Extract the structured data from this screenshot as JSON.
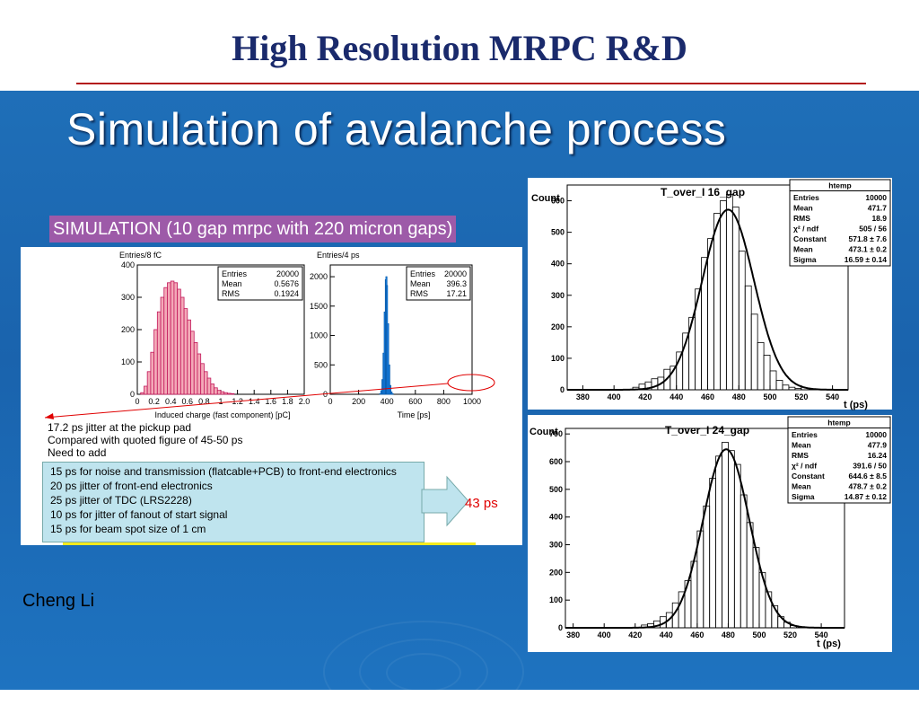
{
  "slide": {
    "title": "High Resolution MRPC R&D",
    "subtitle": "Simulation of avalanche process",
    "author": "Cheng Li"
  },
  "colors": {
    "title": "#1a2a6c",
    "title_rule": "#b31b1b",
    "panel": "#1a67b2",
    "banner": "#9d5aa8",
    "charge_hist": "#f4a9b8",
    "time_hist": "#1e90ff",
    "highlight": "#e00000",
    "add_box": "#bfe4ee"
  },
  "simulation": {
    "banner": "SIMULATION (10 gap mrpc with 220 micron gaps)",
    "notes": [
      "17.2 ps jitter at the pickup pad",
      "Compared with quoted figure of 45-50 ps",
      "Need to add"
    ],
    "additions": [
      "15 ps for noise and transmission (flatcable+PCB) to front-end electronics",
      "20 ps jitter of front-end electronics",
      "25 ps jitter of TDC (LRS2228)",
      "10 ps for jitter of fanout of start signal",
      "15 ps for beam spot size of 1 cm"
    ],
    "result": "43 ps"
  },
  "chart_data": [
    {
      "type": "bar",
      "ylabel": "Entries/8 fC",
      "xlabel": "Induced charge (fast component) [pC]",
      "xlim": [
        0,
        2.0
      ],
      "ylim": [
        0,
        400
      ],
      "xticks": [
        "0",
        "0.2",
        "0.4",
        "0.6",
        "0.8",
        "1",
        "1.2",
        "1.4",
        "1.6",
        "1.8",
        "2.0"
      ],
      "yticks": [
        "0",
        "100",
        "200",
        "300",
        "400"
      ],
      "stats": [
        [
          "Entries",
          "20000"
        ],
        [
          "Mean",
          "0.5676"
        ],
        [
          "RMS",
          "0.1924"
        ]
      ],
      "x": [
        0.06,
        0.1,
        0.14,
        0.18,
        0.22,
        0.26,
        0.3,
        0.34,
        0.38,
        0.42,
        0.46,
        0.5,
        0.54,
        0.58,
        0.62,
        0.66,
        0.7,
        0.74,
        0.78,
        0.82,
        0.86,
        0.9,
        0.94,
        0.98,
        1.02,
        1.06,
        1.1,
        1.14
      ],
      "values": [
        5,
        25,
        70,
        130,
        200,
        255,
        300,
        330,
        345,
        350,
        345,
        325,
        300,
        265,
        230,
        195,
        160,
        125,
        95,
        70,
        50,
        32,
        20,
        12,
        8,
        5,
        3,
        2
      ]
    },
    {
      "type": "bar",
      "ylabel": "Entries/4 ps",
      "xlabel": "Time [ps]",
      "xlim": [
        0,
        1000
      ],
      "ylim": [
        0,
        2200
      ],
      "xticks": [
        "0",
        "200",
        "400",
        "600",
        "800",
        "1000"
      ],
      "yticks": [
        "0",
        "500",
        "1000",
        "1500",
        "2000"
      ],
      "stats": [
        [
          "Entries",
          "20000"
        ],
        [
          "Mean",
          "396.3"
        ],
        [
          "RMS",
          "17.21"
        ]
      ],
      "x": [
        352,
        360,
        368,
        376,
        384,
        392,
        396,
        400,
        408,
        416,
        424,
        432,
        440
      ],
      "values": [
        10,
        60,
        250,
        700,
        1400,
        1950,
        2000,
        1850,
        1200,
        500,
        150,
        40,
        10
      ]
    },
    {
      "type": "bar",
      "title": "T_over_I  16_gap",
      "ylabel": "Count",
      "xlabel": "t  (ps)",
      "xlim": [
        370,
        550
      ],
      "ylim": [
        0,
        650
      ],
      "xticks": [
        "380",
        "400",
        "420",
        "440",
        "460",
        "480",
        "500",
        "520",
        "540"
      ],
      "yticks": [
        "0",
        "100",
        "200",
        "300",
        "400",
        "500",
        "600"
      ],
      "stats_title": "htemp",
      "stats": [
        [
          "Entries",
          "10000"
        ],
        [
          "Mean",
          "471.7"
        ],
        [
          "RMS",
          "18.9"
        ],
        [
          "χ² / ndf",
          "505 / 56"
        ],
        [
          "Constant",
          "571.8 ± 7.6"
        ],
        [
          "Mean",
          "473.1 ± 0.2"
        ],
        [
          "Sigma",
          "16.59 ± 0.14"
        ]
      ],
      "x": [
        414,
        418,
        422,
        426,
        430,
        434,
        438,
        442,
        446,
        450,
        454,
        458,
        462,
        466,
        470,
        474,
        478,
        482,
        486,
        490,
        494,
        498,
        502,
        506,
        510,
        514,
        518
      ],
      "values": [
        8,
        18,
        25,
        35,
        40,
        65,
        75,
        120,
        180,
        230,
        320,
        420,
        480,
        560,
        600,
        620,
        580,
        440,
        330,
        240,
        150,
        110,
        60,
        30,
        15,
        8,
        4
      ],
      "fit": {
        "type": "gaussian",
        "constant": 571.8,
        "mean": 473.1,
        "sigma": 16.59
      }
    },
    {
      "type": "bar",
      "title": "T_over_I  24_gap",
      "ylabel": "Count",
      "xlabel": "t  (ps)",
      "xlim": [
        375,
        555
      ],
      "ylim": [
        0,
        720
      ],
      "xticks": [
        "380",
        "400",
        "420",
        "440",
        "460",
        "480",
        "500",
        "520",
        "540"
      ],
      "yticks": [
        "0",
        "100",
        "200",
        "300",
        "400",
        "500",
        "600",
        "700"
      ],
      "stats_title": "htemp",
      "stats": [
        [
          "Entries",
          "10000"
        ],
        [
          "Mean",
          "477.9"
        ],
        [
          "RMS",
          "16.24"
        ],
        [
          "χ² / ndf",
          "391.6 / 50"
        ],
        [
          "Constant",
          "644.6 ± 8.5"
        ],
        [
          "Mean",
          "478.7 ± 0.2"
        ],
        [
          "Sigma",
          "14.87 ± 0.12"
        ]
      ],
      "x": [
        426,
        430,
        434,
        438,
        442,
        446,
        450,
        454,
        458,
        462,
        466,
        470,
        474,
        478,
        482,
        486,
        490,
        494,
        498,
        502,
        506,
        510,
        514,
        518,
        522
      ],
      "values": [
        10,
        15,
        25,
        40,
        55,
        90,
        130,
        170,
        240,
        350,
        440,
        540,
        620,
        670,
        640,
        590,
        480,
        380,
        290,
        200,
        130,
        80,
        40,
        20,
        8
      ],
      "fit": {
        "type": "gaussian",
        "constant": 644.6,
        "mean": 478.7,
        "sigma": 14.87
      }
    }
  ]
}
